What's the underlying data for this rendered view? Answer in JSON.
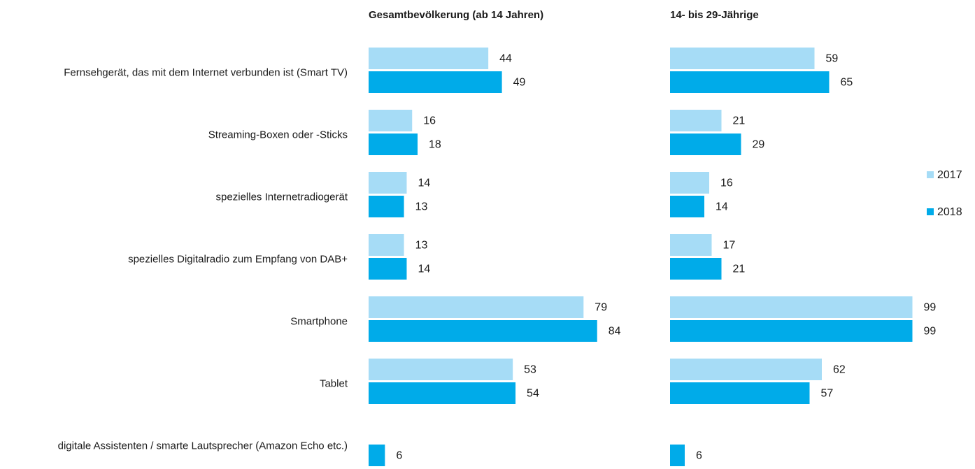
{
  "chart_data": {
    "type": "bar",
    "orientation": "horizontal",
    "categories": [
      "Fernsehgerät, das mit dem Internet verbunden ist (Smart TV)",
      "Streaming-Boxen oder -Sticks",
      "spezielles Internetradiogerät",
      "spezielles Digitalradio zum Empfang von DAB+",
      "Smartphone",
      "Tablet",
      "digitale Assistenten / smarte Lautsprecher (Amazon Echo etc.)"
    ],
    "series": [
      {
        "name": "2017",
        "color": "#a6dcf6"
      },
      {
        "name": "2018",
        "color": "#00abe9"
      }
    ],
    "legend": "right",
    "panels": [
      {
        "title": "Gesamtbevölkerung (ab 14 Jahren)",
        "xlim": [
          0,
          100
        ],
        "values": [
          [
            44,
            16,
            14,
            13,
            79,
            53,
            null
          ],
          [
            49,
            18,
            13,
            14,
            84,
            54,
            6
          ]
        ]
      },
      {
        "title": "14- bis 29-Jährige",
        "xlim": [
          0,
          100
        ],
        "values": [
          [
            59,
            21,
            16,
            17,
            99,
            62,
            null
          ],
          [
            65,
            29,
            14,
            21,
            99,
            57,
            6
          ]
        ]
      }
    ]
  }
}
